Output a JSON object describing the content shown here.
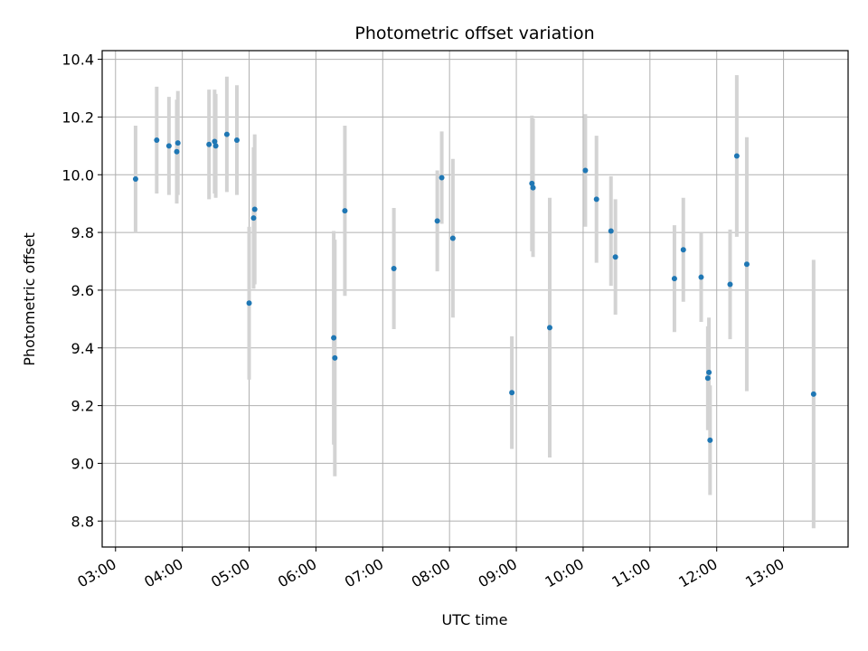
{
  "chart_data": {
    "type": "scatter",
    "title": "Photometric offset variation",
    "xlabel": "UTC time",
    "ylabel": "Photometric offset",
    "x_unit": "UTC time (HH:MM)",
    "xlim": [
      "02:48",
      "13:58"
    ],
    "ylim": [
      8.71,
      10.43
    ],
    "grid": true,
    "x_ticks": [
      "03:00",
      "04:00",
      "05:00",
      "06:00",
      "07:00",
      "08:00",
      "09:00",
      "10:00",
      "11:00",
      "12:00",
      "13:00"
    ],
    "y_ticks": [
      "8.8",
      "9.0",
      "9.2",
      "9.4",
      "9.6",
      "9.8",
      "10.0",
      "10.2",
      "10.4"
    ],
    "marker_color": "#1f77b4",
    "errorbar_color": "#d3d3d3",
    "points": [
      {
        "x": "03:18",
        "y": 9.985,
        "err": 0.185
      },
      {
        "x": "03:37",
        "y": 10.12,
        "err": 0.185
      },
      {
        "x": "03:48",
        "y": 10.1,
        "err": 0.17
      },
      {
        "x": "03:55",
        "y": 10.08,
        "err": 0.18
      },
      {
        "x": "03:56",
        "y": 10.11,
        "err": 0.18
      },
      {
        "x": "04:24",
        "y": 10.105,
        "err": 0.19
      },
      {
        "x": "04:29",
        "y": 10.115,
        "err": 0.18
      },
      {
        "x": "04:30",
        "y": 10.1,
        "err": 0.18
      },
      {
        "x": "04:40",
        "y": 10.14,
        "err": 0.2
      },
      {
        "x": "04:49",
        "y": 10.12,
        "err": 0.19
      },
      {
        "x": "05:00",
        "y": 9.555,
        "err": 0.265
      },
      {
        "x": "05:04",
        "y": 9.85,
        "err": 0.245
      },
      {
        "x": "05:05",
        "y": 9.88,
        "err": 0.26
      },
      {
        "x": "06:16",
        "y": 9.435,
        "err": 0.37
      },
      {
        "x": "06:17",
        "y": 9.365,
        "err": 0.41
      },
      {
        "x": "06:26",
        "y": 9.875,
        "err": 0.295
      },
      {
        "x": "07:10",
        "y": 9.675,
        "err": 0.21
      },
      {
        "x": "07:49",
        "y": 9.84,
        "err": 0.175
      },
      {
        "x": "07:53",
        "y": 9.99,
        "err": 0.16
      },
      {
        "x": "08:03",
        "y": 9.78,
        "err": 0.275
      },
      {
        "x": "08:56",
        "y": 9.245,
        "err": 0.195
      },
      {
        "x": "09:14",
        "y": 9.97,
        "err": 0.235
      },
      {
        "x": "09:15",
        "y": 9.955,
        "err": 0.24
      },
      {
        "x": "09:30",
        "y": 9.47,
        "err": 0.45
      },
      {
        "x": "10:02",
        "y": 10.015,
        "err": 0.195
      },
      {
        "x": "10:12",
        "y": 9.915,
        "err": 0.22
      },
      {
        "x": "10:25",
        "y": 9.805,
        "err": 0.19
      },
      {
        "x": "10:29",
        "y": 9.715,
        "err": 0.2
      },
      {
        "x": "11:22",
        "y": 9.64,
        "err": 0.185
      },
      {
        "x": "11:30",
        "y": 9.74,
        "err": 0.18
      },
      {
        "x": "11:46",
        "y": 9.645,
        "err": 0.155
      },
      {
        "x": "11:52",
        "y": 9.295,
        "err": 0.18
      },
      {
        "x": "11:53",
        "y": 9.315,
        "err": 0.19
      },
      {
        "x": "11:54",
        "y": 9.08,
        "err": 0.19
      },
      {
        "x": "12:12",
        "y": 9.62,
        "err": 0.19
      },
      {
        "x": "12:18",
        "y": 10.065,
        "err": 0.28
      },
      {
        "x": "12:27",
        "y": 9.69,
        "err": 0.44
      },
      {
        "x": "13:27",
        "y": 9.24,
        "err": 0.465
      }
    ]
  }
}
